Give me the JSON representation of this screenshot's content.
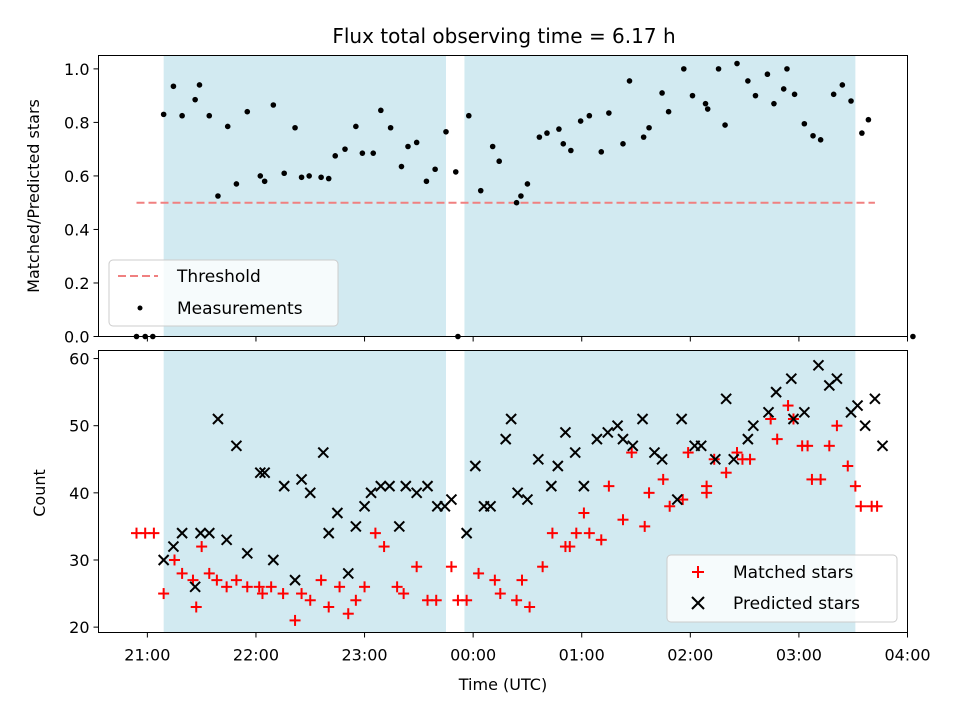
{
  "title": "Flux total observing time = 6.17 h",
  "colors": {
    "band": "#add8e6",
    "threshold": "#f08080",
    "measurements": "#000000",
    "matched": "#ff0000",
    "predicted": "#000000"
  },
  "chart_data": [
    {
      "type": "scatter",
      "panel": "top",
      "ylabel": "Matched/Predicted stars",
      "ylim": [
        0,
        1.05
      ],
      "yticks": [
        0.0,
        0.2,
        0.4,
        0.6,
        0.8,
        1.0
      ],
      "ytick_labels": [
        "0.0",
        "0.2",
        "0.4",
        "0.6",
        "0.8",
        "1.0"
      ],
      "x_unit": "hours since 21:00 UTC",
      "xlim": [
        -0.45,
        7.0
      ],
      "shaded_intervals": [
        [
          0.15,
          2.75
        ],
        [
          2.92,
          6.52
        ]
      ],
      "legend_position": "lower-left",
      "threshold": {
        "name": "Threshold",
        "y": 0.5,
        "x_range": [
          -0.1,
          6.7
        ]
      },
      "series": [
        {
          "name": "Measurements",
          "points": [
            [
              -0.1,
              0.0
            ],
            [
              -0.02,
              0.0
            ],
            [
              0.05,
              0.0
            ],
            [
              0.15,
              0.83
            ],
            [
              0.24,
              0.935
            ],
            [
              0.32,
              0.825
            ],
            [
              0.44,
              0.885
            ],
            [
              0.48,
              0.94
            ],
            [
              0.57,
              0.825
            ],
            [
              0.65,
              0.525
            ],
            [
              0.74,
              0.785
            ],
            [
              0.82,
              0.57
            ],
            [
              0.92,
              0.84
            ],
            [
              1.04,
              0.6
            ],
            [
              1.08,
              0.58
            ],
            [
              1.16,
              0.865
            ],
            [
              1.26,
              0.61
            ],
            [
              1.36,
              0.78
            ],
            [
              1.42,
              0.595
            ],
            [
              1.49,
              0.6
            ],
            [
              1.6,
              0.595
            ],
            [
              1.67,
              0.59
            ],
            [
              1.73,
              0.675
            ],
            [
              1.82,
              0.7
            ],
            [
              1.92,
              0.785
            ],
            [
              1.98,
              0.685
            ],
            [
              2.08,
              0.685
            ],
            [
              2.15,
              0.845
            ],
            [
              2.24,
              0.78
            ],
            [
              2.34,
              0.635
            ],
            [
              2.4,
              0.71
            ],
            [
              2.48,
              0.725
            ],
            [
              2.57,
              0.58
            ],
            [
              2.65,
              0.625
            ],
            [
              2.75,
              0.765
            ],
            [
              2.84,
              0.615
            ],
            [
              2.86,
              0.0
            ],
            [
              2.96,
              0.825
            ],
            [
              3.07,
              0.545
            ],
            [
              3.18,
              0.71
            ],
            [
              3.24,
              0.655
            ],
            [
              3.4,
              0.5
            ],
            [
              3.44,
              0.525
            ],
            [
              3.5,
              0.57
            ],
            [
              3.61,
              0.745
            ],
            [
              3.68,
              0.76
            ],
            [
              3.79,
              0.775
            ],
            [
              3.83,
              0.72
            ],
            [
              3.9,
              0.695
            ],
            [
              3.99,
              0.805
            ],
            [
              4.07,
              0.825
            ],
            [
              4.18,
              0.69
            ],
            [
              4.25,
              0.835
            ],
            [
              4.38,
              0.72
            ],
            [
              4.44,
              0.955
            ],
            [
              4.57,
              0.745
            ],
            [
              4.62,
              0.78
            ],
            [
              4.74,
              0.91
            ],
            [
              4.8,
              0.84
            ],
            [
              4.94,
              1.0
            ],
            [
              5.02,
              0.9
            ],
            [
              5.14,
              0.87
            ],
            [
              5.16,
              0.85
            ],
            [
              5.26,
              1.0
            ],
            [
              5.32,
              0.79
            ],
            [
              5.43,
              1.02
            ],
            [
              5.53,
              0.955
            ],
            [
              5.6,
              0.9
            ],
            [
              5.71,
              0.98
            ],
            [
              5.77,
              0.87
            ],
            [
              5.86,
              0.925
            ],
            [
              5.89,
              1.0
            ],
            [
              5.96,
              0.905
            ],
            [
              6.05,
              0.795
            ],
            [
              6.13,
              0.75
            ],
            [
              6.2,
              0.735
            ],
            [
              6.32,
              0.905
            ],
            [
              6.4,
              0.94
            ],
            [
              6.48,
              0.88
            ],
            [
              6.58,
              0.76
            ],
            [
              6.64,
              0.81
            ],
            [
              7.05,
              0.0
            ]
          ]
        }
      ]
    },
    {
      "type": "scatter",
      "panel": "bottom",
      "xlabel": "Time (UTC)",
      "ylabel": "Count",
      "ylim": [
        19.2,
        61.2
      ],
      "yticks": [
        20,
        30,
        40,
        50,
        60
      ],
      "ytick_labels": [
        "20",
        "30",
        "40",
        "50",
        "60"
      ],
      "x_unit": "hours since 21:00 UTC",
      "xlim": [
        -0.45,
        7.0
      ],
      "xticks": [
        0,
        1,
        2,
        3,
        4,
        5,
        6,
        7
      ],
      "xtick_labels": [
        "21:00",
        "22:00",
        "23:00",
        "00:00",
        "01:00",
        "02:00",
        "03:00",
        "04:00"
      ],
      "shaded_intervals": [
        [
          0.15,
          2.75
        ],
        [
          2.92,
          6.52
        ]
      ],
      "legend_position": "lower-right",
      "series": [
        {
          "name": "Matched stars",
          "marker": "plus",
          "points": [
            [
              -0.1,
              34
            ],
            [
              -0.02,
              34
            ],
            [
              0.06,
              34
            ],
            [
              0.15,
              25
            ],
            [
              0.25,
              30
            ],
            [
              0.32,
              28
            ],
            [
              0.42,
              27
            ],
            [
              0.45,
              23
            ],
            [
              0.5,
              32
            ],
            [
              0.57,
              28
            ],
            [
              0.64,
              27
            ],
            [
              0.73,
              26
            ],
            [
              0.82,
              27
            ],
            [
              0.92,
              26
            ],
            [
              1.03,
              26
            ],
            [
              1.06,
              25
            ],
            [
              1.14,
              26
            ],
            [
              1.25,
              25
            ],
            [
              1.36,
              21
            ],
            [
              1.42,
              25
            ],
            [
              1.5,
              24
            ],
            [
              1.6,
              27
            ],
            [
              1.67,
              23
            ],
            [
              1.77,
              26
            ],
            [
              1.85,
              22
            ],
            [
              1.92,
              24
            ],
            [
              2.0,
              26
            ],
            [
              2.1,
              34
            ],
            [
              2.18,
              32
            ],
            [
              2.3,
              26
            ],
            [
              2.36,
              25
            ],
            [
              2.48,
              29
            ],
            [
              2.58,
              24
            ],
            [
              2.66,
              24
            ],
            [
              2.8,
              29
            ],
            [
              2.86,
              24
            ],
            [
              2.94,
              24
            ],
            [
              3.05,
              28
            ],
            [
              3.2,
              27
            ],
            [
              3.25,
              25
            ],
            [
              3.4,
              24
            ],
            [
              3.45,
              27
            ],
            [
              3.52,
              23
            ],
            [
              3.64,
              29
            ],
            [
              3.73,
              34
            ],
            [
              3.85,
              32
            ],
            [
              3.89,
              32
            ],
            [
              3.95,
              34
            ],
            [
              4.02,
              37
            ],
            [
              4.07,
              34
            ],
            [
              4.18,
              33
            ],
            [
              4.25,
              41
            ],
            [
              4.38,
              36
            ],
            [
              4.46,
              46
            ],
            [
              4.58,
              35
            ],
            [
              4.62,
              40
            ],
            [
              4.75,
              42
            ],
            [
              4.81,
              38
            ],
            [
              4.93,
              39
            ],
            [
              4.98,
              46
            ],
            [
              5.15,
              41
            ],
            [
              5.15,
              40
            ],
            [
              5.22,
              45
            ],
            [
              5.33,
              43
            ],
            [
              5.43,
              46
            ],
            [
              5.48,
              45
            ],
            [
              5.55,
              45
            ],
            [
              5.74,
              51
            ],
            [
              5.8,
              48
            ],
            [
              5.9,
              53
            ],
            [
              5.95,
              51
            ],
            [
              6.03,
              47
            ],
            [
              6.08,
              47
            ],
            [
              6.12,
              42
            ],
            [
              6.2,
              42
            ],
            [
              6.28,
              47
            ],
            [
              6.35,
              50
            ],
            [
              6.45,
              44
            ],
            [
              6.52,
              41
            ],
            [
              6.57,
              38
            ],
            [
              6.67,
              38
            ],
            [
              6.72,
              38
            ]
          ]
        },
        {
          "name": "Predicted stars",
          "marker": "x",
          "points": [
            [
              0.15,
              30
            ],
            [
              0.24,
              32
            ],
            [
              0.32,
              34
            ],
            [
              0.44,
              26
            ],
            [
              0.49,
              34
            ],
            [
              0.57,
              34
            ],
            [
              0.65,
              51
            ],
            [
              0.73,
              33
            ],
            [
              0.82,
              47
            ],
            [
              0.92,
              31
            ],
            [
              1.04,
              43
            ],
            [
              1.08,
              43
            ],
            [
              1.16,
              30
            ],
            [
              1.26,
              41
            ],
            [
              1.36,
              27
            ],
            [
              1.42,
              42
            ],
            [
              1.5,
              40
            ],
            [
              1.62,
              46
            ],
            [
              1.67,
              34
            ],
            [
              1.75,
              37
            ],
            [
              1.85,
              28
            ],
            [
              1.92,
              35
            ],
            [
              2.0,
              38
            ],
            [
              2.06,
              40
            ],
            [
              2.15,
              41
            ],
            [
              2.23,
              41
            ],
            [
              2.32,
              35
            ],
            [
              2.38,
              41
            ],
            [
              2.48,
              40
            ],
            [
              2.58,
              41
            ],
            [
              2.67,
              38
            ],
            [
              2.74,
              38
            ],
            [
              2.8,
              39
            ],
            [
              2.94,
              34
            ],
            [
              3.02,
              44
            ],
            [
              3.1,
              38
            ],
            [
              3.16,
              38
            ],
            [
              3.3,
              48
            ],
            [
              3.35,
              51
            ],
            [
              3.41,
              40
            ],
            [
              3.5,
              39
            ],
            [
              3.6,
              45
            ],
            [
              3.72,
              41
            ],
            [
              3.78,
              44
            ],
            [
              3.85,
              49
            ],
            [
              3.94,
              46
            ],
            [
              4.02,
              41
            ],
            [
              4.14,
              48
            ],
            [
              4.24,
              49
            ],
            [
              4.33,
              50
            ],
            [
              4.38,
              48
            ],
            [
              4.47,
              47
            ],
            [
              4.56,
              51
            ],
            [
              4.67,
              46
            ],
            [
              4.74,
              45
            ],
            [
              4.88,
              39
            ],
            [
              4.92,
              51
            ],
            [
              5.04,
              47
            ],
            [
              5.1,
              47
            ],
            [
              5.23,
              45
            ],
            [
              5.33,
              54
            ],
            [
              5.4,
              45
            ],
            [
              5.53,
              48
            ],
            [
              5.58,
              50
            ],
            [
              5.72,
              52
            ],
            [
              5.79,
              55
            ],
            [
              5.93,
              57
            ],
            [
              5.95,
              51
            ],
            [
              6.05,
              52
            ],
            [
              6.18,
              59
            ],
            [
              6.28,
              56
            ],
            [
              6.35,
              57
            ],
            [
              6.48,
              52
            ],
            [
              6.54,
              53
            ],
            [
              6.61,
              50
            ],
            [
              6.7,
              54
            ],
            [
              6.77,
              47
            ]
          ]
        }
      ]
    }
  ]
}
